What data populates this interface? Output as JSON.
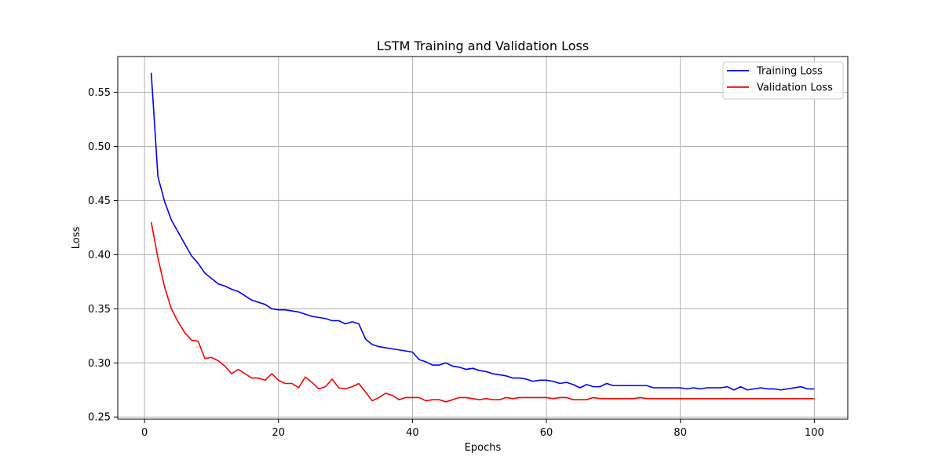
{
  "chart_data": {
    "type": "line",
    "title": "LSTM Training and Validation Loss",
    "xlabel": "Epochs",
    "ylabel": "Loss",
    "xlim": [
      -4,
      105
    ],
    "ylim": [
      0.248,
      0.583
    ],
    "xticks": [
      0,
      20,
      40,
      60,
      80,
      100
    ],
    "yticks": [
      0.25,
      0.3,
      0.35,
      0.4,
      0.45,
      0.5,
      0.55
    ],
    "grid": true,
    "legend_position": "top-right",
    "x": [
      1,
      2,
      3,
      4,
      5,
      6,
      7,
      8,
      9,
      10,
      11,
      12,
      13,
      14,
      15,
      16,
      17,
      18,
      19,
      20,
      21,
      22,
      23,
      24,
      25,
      26,
      27,
      28,
      29,
      30,
      31,
      32,
      33,
      34,
      35,
      36,
      37,
      38,
      39,
      40,
      41,
      42,
      43,
      44,
      45,
      46,
      47,
      48,
      49,
      50,
      51,
      52,
      53,
      54,
      55,
      56,
      57,
      58,
      59,
      60,
      61,
      62,
      63,
      64,
      65,
      66,
      67,
      68,
      69,
      70,
      71,
      72,
      73,
      74,
      75,
      76,
      77,
      78,
      79,
      80,
      81,
      82,
      83,
      84,
      85,
      86,
      87,
      88,
      89,
      90,
      91,
      92,
      93,
      94,
      95,
      96,
      97,
      98,
      99,
      100
    ],
    "series": [
      {
        "name": "Training Loss",
        "color": "#0000ff",
        "values": [
          0.568,
          0.472,
          0.449,
          0.432,
          0.421,
          0.41,
          0.399,
          0.392,
          0.383,
          0.378,
          0.373,
          0.371,
          0.368,
          0.366,
          0.362,
          0.358,
          0.356,
          0.354,
          0.35,
          0.349,
          0.349,
          0.348,
          0.347,
          0.345,
          0.343,
          0.342,
          0.341,
          0.339,
          0.339,
          0.336,
          0.338,
          0.336,
          0.322,
          0.317,
          0.315,
          0.314,
          0.313,
          0.312,
          0.311,
          0.31,
          0.303,
          0.301,
          0.298,
          0.298,
          0.3,
          0.297,
          0.296,
          0.294,
          0.295,
          0.293,
          0.292,
          0.29,
          0.289,
          0.288,
          0.286,
          0.286,
          0.285,
          0.283,
          0.284,
          0.284,
          0.283,
          0.281,
          0.282,
          0.28,
          0.277,
          0.28,
          0.278,
          0.278,
          0.281,
          0.279,
          0.279,
          0.279,
          0.279,
          0.279,
          0.279,
          0.277,
          0.277,
          0.277,
          0.277,
          0.277,
          0.276,
          0.277,
          0.276,
          0.277,
          0.277,
          0.277,
          0.278,
          0.275,
          0.278,
          0.275,
          0.276,
          0.277,
          0.276,
          0.276,
          0.275,
          0.276,
          0.277,
          0.278,
          0.276,
          0.276
        ]
      },
      {
        "name": "Validation Loss",
        "color": "#ff0000",
        "values": [
          0.43,
          0.397,
          0.37,
          0.35,
          0.338,
          0.328,
          0.321,
          0.32,
          0.304,
          0.305,
          0.302,
          0.297,
          0.29,
          0.294,
          0.29,
          0.286,
          0.286,
          0.284,
          0.29,
          0.284,
          0.281,
          0.281,
          0.277,
          0.287,
          0.282,
          0.276,
          0.278,
          0.285,
          0.277,
          0.276,
          0.278,
          0.281,
          0.273,
          0.265,
          0.268,
          0.272,
          0.27,
          0.266,
          0.268,
          0.268,
          0.268,
          0.265,
          0.266,
          0.266,
          0.264,
          0.266,
          0.268,
          0.268,
          0.267,
          0.266,
          0.267,
          0.266,
          0.266,
          0.268,
          0.267,
          0.268,
          0.268,
          0.268,
          0.268,
          0.268,
          0.267,
          0.268,
          0.268,
          0.266,
          0.266,
          0.266,
          0.268,
          0.267,
          0.267,
          0.267,
          0.267,
          0.267,
          0.267,
          0.268,
          0.267,
          0.267,
          0.267,
          0.267,
          0.267,
          0.267,
          0.267,
          0.267,
          0.267,
          0.267,
          0.267,
          0.267,
          0.267,
          0.267,
          0.267,
          0.267,
          0.267,
          0.267,
          0.267,
          0.267,
          0.267,
          0.267,
          0.267,
          0.267,
          0.267,
          0.267
        ]
      }
    ]
  }
}
